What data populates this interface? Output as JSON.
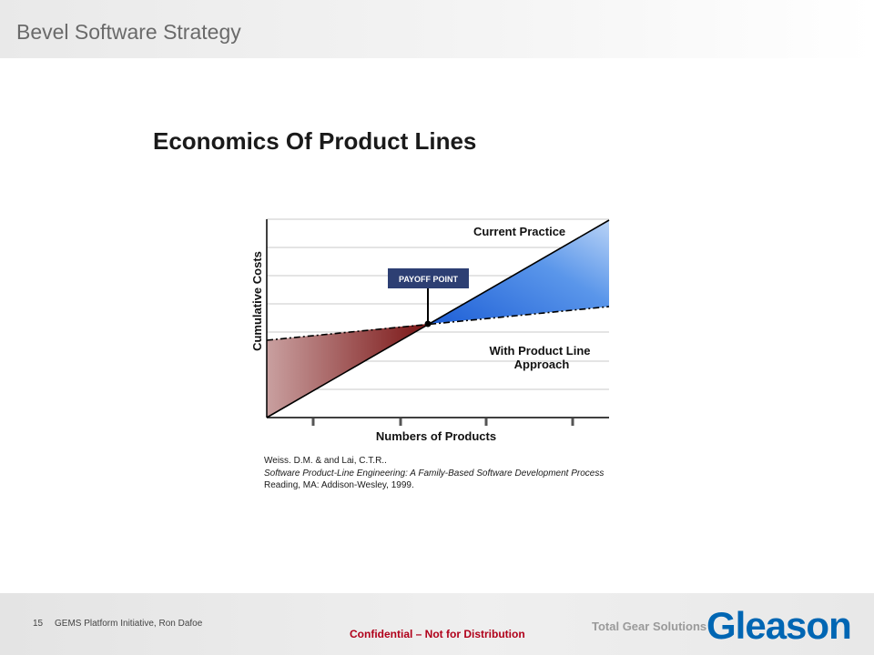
{
  "header": {
    "title": "Bevel Software Strategy"
  },
  "slide": {
    "title": "Economics Of Product Lines"
  },
  "diagram": {
    "y_label": "Cumulative Costs",
    "x_label": "Numbers of Products",
    "line_current": "Current Practice",
    "line_product_line_1": "With Product Line",
    "line_product_line_2": "Approach",
    "payoff_label": "PAYOFF POINT",
    "colors": {
      "loss_region": "#8b1e1e",
      "gain_region": "#3a7fe0",
      "payoff_box": "#2d3f73"
    }
  },
  "citation": {
    "line1": "Weiss. D.M. &  and Lai, C.T.R..",
    "line2": "Software Product-Line Engineering: A Family-Based Software Development Process",
    "line3": "Reading, MA: Addison-Wesley, 1999."
  },
  "footer": {
    "page_number": "15",
    "text": "GEMS  Platform Initiative,  Ron Dafoe",
    "confidential": "Confidential  – Not for Distribution",
    "tagline": "Total Gear Solutions",
    "logo": "Gleason"
  }
}
